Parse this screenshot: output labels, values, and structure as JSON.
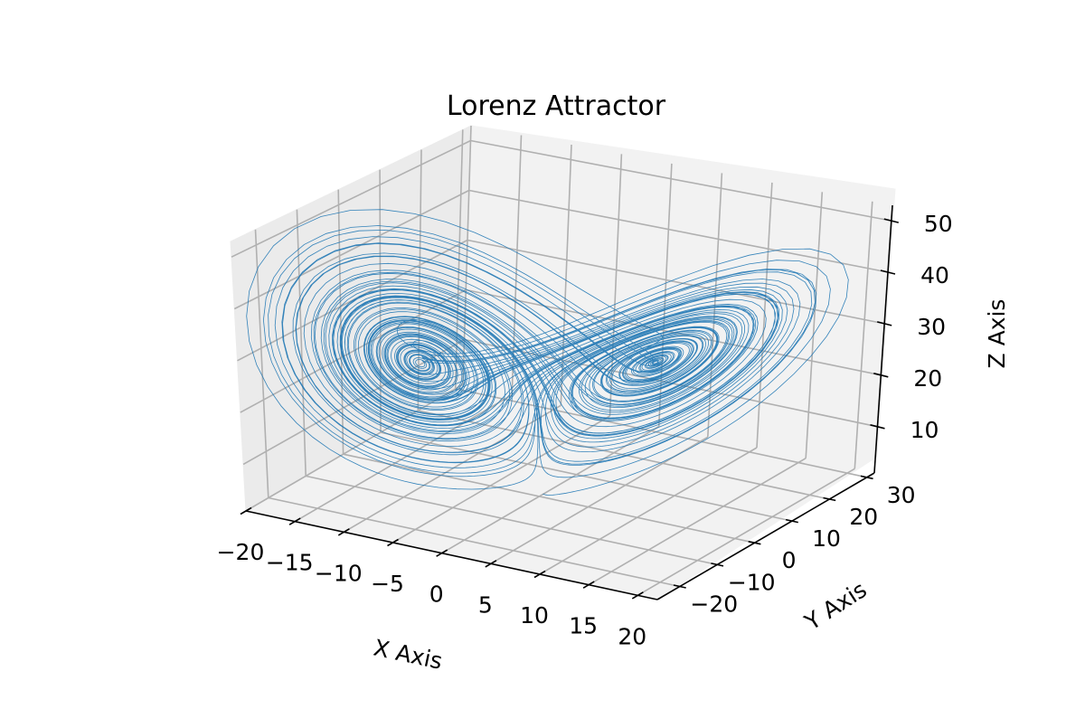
{
  "chart_data": {
    "type": "line",
    "projection": "3d",
    "title": "Lorenz Attractor",
    "xlabel": "X Axis",
    "ylabel": "Y Axis",
    "zlabel": "Z Axis",
    "xlim": [
      -20,
      22
    ],
    "ylim": [
      -26,
      32
    ],
    "zlim": [
      1,
      53
    ],
    "xticks": [
      -20,
      -15,
      -10,
      -5,
      0,
      5,
      10,
      15,
      20
    ],
    "xtick_labels": [
      "−20",
      "−15",
      "−10",
      "−5",
      "0",
      "5",
      "10",
      "15",
      "20"
    ],
    "yticks": [
      -20,
      -10,
      0,
      10,
      20,
      30
    ],
    "ytick_labels": [
      "−20",
      "−10",
      "0",
      "10",
      "20",
      "30"
    ],
    "zticks": [
      10,
      20,
      30,
      40,
      50
    ],
    "ztick_labels": [
      "10",
      "20",
      "30",
      "40",
      "50"
    ],
    "grid": true,
    "series": [
      {
        "equation": "lorenz",
        "parameters": {
          "sigma": 10,
          "rho": 28,
          "beta": 2.6667
        },
        "initial_point": [
          0.0,
          1.0,
          1.05
        ],
        "time_step": 0.01,
        "steps": 10000,
        "color": "#1f77b4"
      }
    ]
  }
}
